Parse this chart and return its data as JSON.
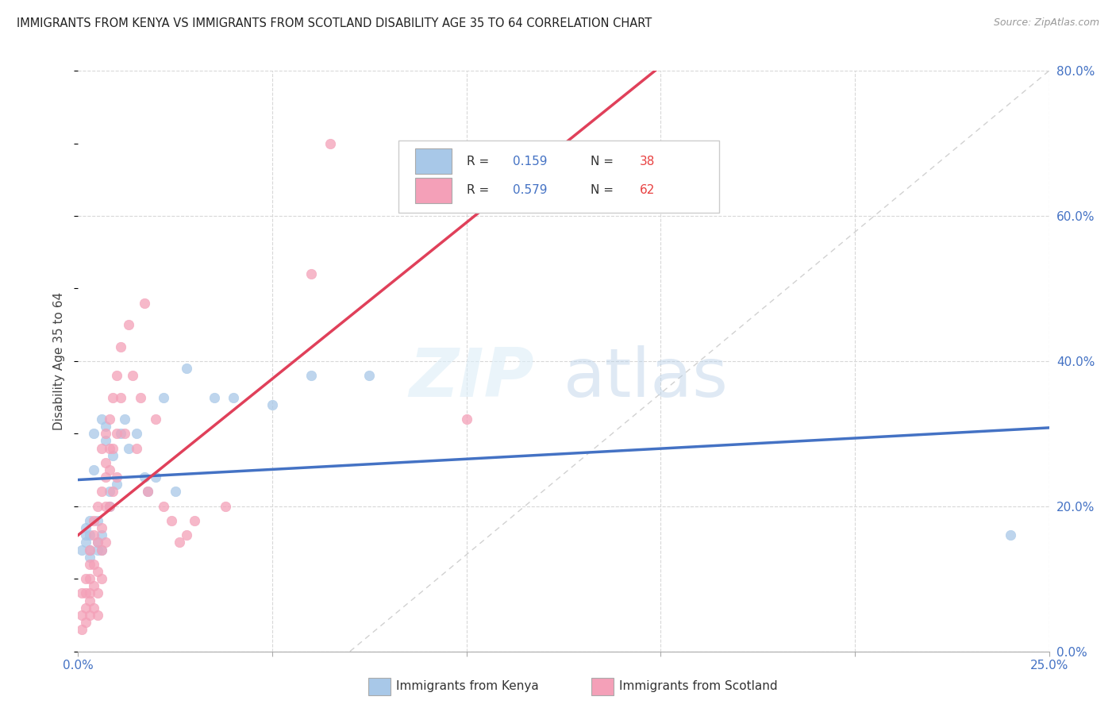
{
  "title": "IMMIGRANTS FROM KENYA VS IMMIGRANTS FROM SCOTLAND DISABILITY AGE 35 TO 64 CORRELATION CHART",
  "source": "Source: ZipAtlas.com",
  "ylabel": "Disability Age 35 to 64",
  "legend_label1": "Immigrants from Kenya",
  "legend_label2": "Immigrants from Scotland",
  "R_kenya": 0.159,
  "N_kenya": 38,
  "R_scotland": 0.579,
  "N_scotland": 62,
  "color_kenya": "#a8c8e8",
  "color_scotland": "#f4a0b8",
  "line_color_kenya": "#4472c4",
  "line_color_scotland": "#e0405a",
  "diagonal_color": "#cccccc",
  "watermark_zip": "ZIP",
  "watermark_atlas": "atlas",
  "x_max": 0.25,
  "y_max": 0.8,
  "yticks": [
    0.0,
    0.2,
    0.4,
    0.6,
    0.8
  ],
  "ytick_labels": [
    "0.0%",
    "20.0%",
    "40.0%",
    "60.0%",
    "80.0%"
  ],
  "xticks": [
    0.0,
    0.05,
    0.1,
    0.15,
    0.2,
    0.25
  ],
  "kenya_x": [
    0.001,
    0.002,
    0.002,
    0.002,
    0.003,
    0.003,
    0.003,
    0.003,
    0.004,
    0.004,
    0.005,
    0.005,
    0.005,
    0.006,
    0.006,
    0.006,
    0.007,
    0.007,
    0.008,
    0.008,
    0.009,
    0.01,
    0.011,
    0.012,
    0.013,
    0.015,
    0.017,
    0.018,
    0.02,
    0.022,
    0.025,
    0.028,
    0.035,
    0.04,
    0.05,
    0.06,
    0.075,
    0.24
  ],
  "kenya_y": [
    0.14,
    0.16,
    0.17,
    0.15,
    0.13,
    0.18,
    0.16,
    0.14,
    0.3,
    0.25,
    0.15,
    0.18,
    0.14,
    0.32,
    0.16,
    0.14,
    0.29,
    0.31,
    0.22,
    0.2,
    0.27,
    0.23,
    0.3,
    0.32,
    0.28,
    0.3,
    0.24,
    0.22,
    0.24,
    0.35,
    0.22,
    0.39,
    0.35,
    0.35,
    0.34,
    0.38,
    0.38,
    0.16
  ],
  "scotland_x": [
    0.001,
    0.001,
    0.001,
    0.002,
    0.002,
    0.002,
    0.002,
    0.003,
    0.003,
    0.003,
    0.003,
    0.003,
    0.003,
    0.004,
    0.004,
    0.004,
    0.004,
    0.004,
    0.005,
    0.005,
    0.005,
    0.005,
    0.005,
    0.006,
    0.006,
    0.006,
    0.006,
    0.006,
    0.007,
    0.007,
    0.007,
    0.007,
    0.007,
    0.008,
    0.008,
    0.008,
    0.008,
    0.009,
    0.009,
    0.009,
    0.01,
    0.01,
    0.01,
    0.011,
    0.011,
    0.012,
    0.013,
    0.014,
    0.015,
    0.016,
    0.017,
    0.018,
    0.02,
    0.022,
    0.024,
    0.026,
    0.028,
    0.03,
    0.038,
    0.06,
    0.065,
    0.1
  ],
  "scotland_y": [
    0.05,
    0.08,
    0.03,
    0.1,
    0.06,
    0.04,
    0.08,
    0.14,
    0.1,
    0.07,
    0.12,
    0.08,
    0.05,
    0.16,
    0.12,
    0.18,
    0.09,
    0.06,
    0.2,
    0.15,
    0.11,
    0.08,
    0.05,
    0.22,
    0.17,
    0.28,
    0.14,
    0.1,
    0.3,
    0.24,
    0.26,
    0.2,
    0.15,
    0.25,
    0.32,
    0.2,
    0.28,
    0.35,
    0.28,
    0.22,
    0.38,
    0.3,
    0.24,
    0.42,
    0.35,
    0.3,
    0.45,
    0.38,
    0.28,
    0.35,
    0.48,
    0.22,
    0.32,
    0.2,
    0.18,
    0.15,
    0.16,
    0.18,
    0.2,
    0.52,
    0.7,
    0.32
  ]
}
